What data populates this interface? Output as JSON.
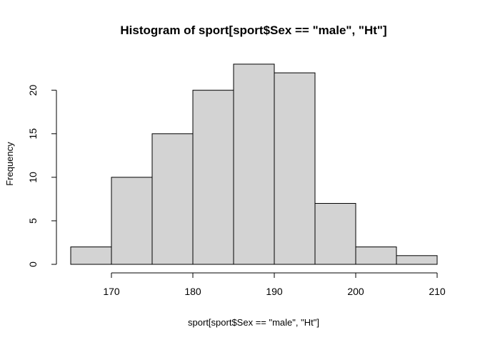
{
  "chart_data": {
    "type": "bar",
    "title": "Histogram of sport[sport$Sex == \"male\", \"Ht\"]",
    "xlabel": "sport[sport$Sex == \"male\", \"Ht\"]",
    "ylabel": "Frequency",
    "bins": [
      {
        "start": 165,
        "end": 170,
        "count": 2
      },
      {
        "start": 170,
        "end": 175,
        "count": 10
      },
      {
        "start": 175,
        "end": 180,
        "count": 15
      },
      {
        "start": 180,
        "end": 185,
        "count": 20
      },
      {
        "start": 185,
        "end": 190,
        "count": 23
      },
      {
        "start": 190,
        "end": 195,
        "count": 22
      },
      {
        "start": 195,
        "end": 200,
        "count": 7
      },
      {
        "start": 200,
        "end": 205,
        "count": 2
      },
      {
        "start": 205,
        "end": 210,
        "count": 1
      }
    ],
    "xlim": [
      165,
      210
    ],
    "ylim": [
      0,
      23
    ],
    "x_ticks": [
      170,
      180,
      190,
      200,
      210
    ],
    "y_ticks": [
      0,
      5,
      10,
      15,
      20
    ],
    "bar_color": "#d3d3d3",
    "grid": false
  }
}
